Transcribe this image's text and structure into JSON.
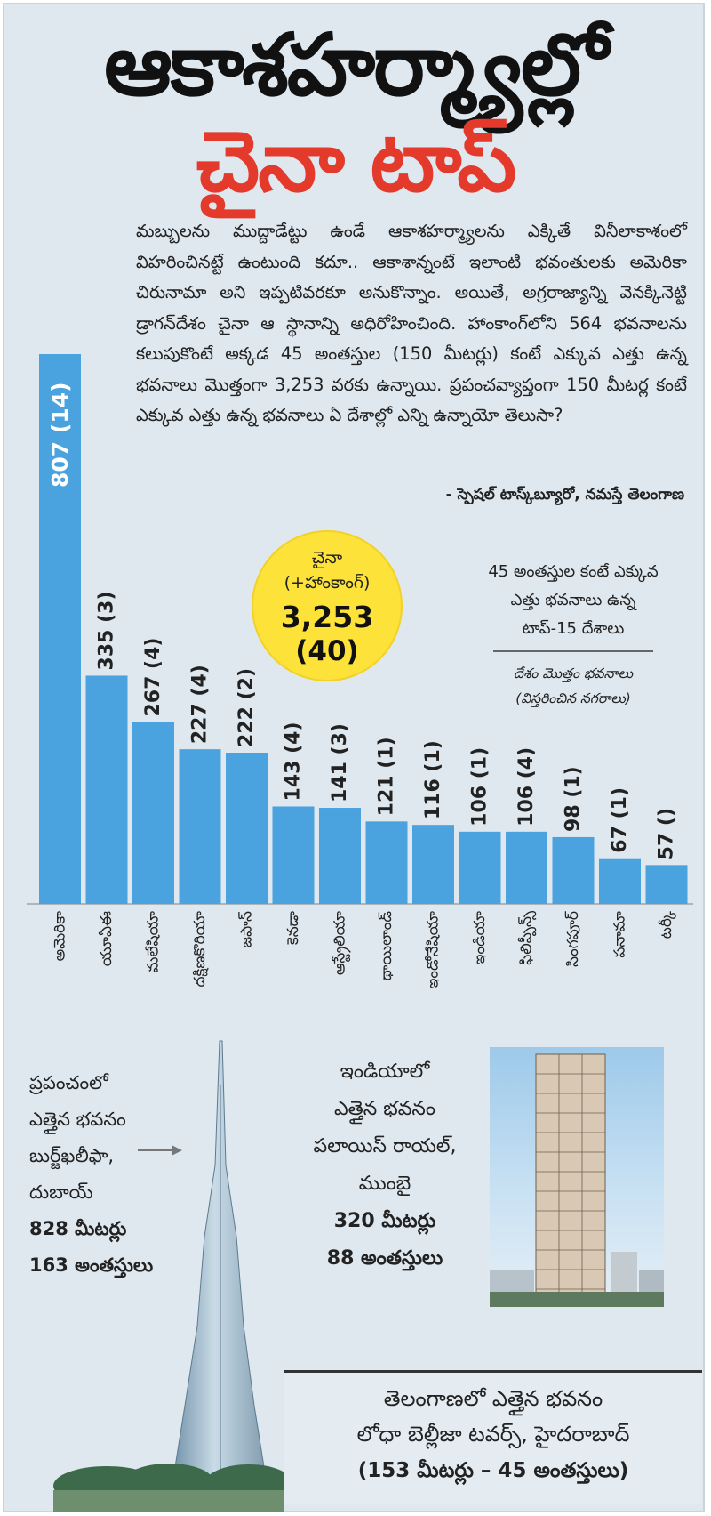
{
  "headline": {
    "line1": "ఆకాశహర్మ్యాల్లో",
    "line2": "చైనా టాప్"
  },
  "intro_text": "మబ్బులను ముద్దాడేట్టు ఉండే ఆకాశహర్మ్యాలను ఎక్కితే వినీలాకాశంలో విహరించినట్టే ఉంటుంది కదూ.. ఆకాశాన్నంటే ఇలాంటి భవంతులకు అమెరికా చిరునామా అని ఇప్పటివరకూ అనుకొన్నాం. అయితే, అగ్రరాజ్యాన్ని వెనక్కినెట్టి డ్రాగన్‌దేశం చైనా ఆ స్థానాన్ని అధిరోహించింది. హాంకాంగ్‌లోని 564 భవనాలను కలుపుకొంటే అక్కడ 45 అంతస్తుల (150 మీటర్లు) కంటే ఎక్కువ ఎత్తు ఉన్న భవనాలు మొత్తంగా 3,253 వరకు ఉన్నాయి. ప్రపంచవ్యాప్తంగా 150 మీటర్ల కంటే ఎక్కువ ఎత్తు ఉన్న భవనాలు ఏ దేశాల్లో ఎన్ని ఉన్నాయో తెలుసా?",
  "credit": "- స్పెషల్ టాస్క్‌బ్యూరో, నమస్తే తెలంగాణ",
  "china_callout": {
    "country": "చైనా",
    "note": "(+హాంకాంగ్)",
    "total": "3,253",
    "cities": "(40)"
  },
  "legend": {
    "line1": "45 అంతస్తుల కంటే ఎక్కువ",
    "line2": "ఎత్తు భవనాలు ఉన్న",
    "line3": "టాప్-15 దేశాలు",
    "line4": "దేశం మొత్తం భవనాలు",
    "line5": "(విస్తరించిన నగరాలు)"
  },
  "chart_data": {
    "type": "bar",
    "title": "45 అంతస్తుల కంటే ఎక్కువ ఎత్తు భవనాలు ఉన్న టాప్-15 దేశాలు",
    "categories": [
      "అమెరికా",
      "యూఏఈ",
      "మలేషియా",
      "దక్షిణకొరియా",
      "జపాన్",
      "కెనడా",
      "ఆస్ట్రేలియా",
      "థాయిలాండ్",
      "ఇండోనేషియా",
      "ఇండియా",
      "ఫిలిప్పీన్స్",
      "సింగపూర్",
      "పనామా",
      "టర్కీ"
    ],
    "values": [
      807,
      335,
      267,
      227,
      222,
      143,
      141,
      121,
      116,
      106,
      106,
      98,
      67,
      57
    ],
    "labels": [
      "807 (14)",
      "335 (3)",
      "267 (4)",
      "227 (4)",
      "222 (2)",
      "143 (4)",
      "141 (3)",
      "121 (1)",
      "116 (1)",
      "106 (1)",
      "106 (4)",
      "98 (1)",
      "67 (1)",
      "57 ()"
    ],
    "bar_color": "#4aa3df",
    "ylim": [
      0,
      807
    ]
  },
  "burj": {
    "l1": "ప్రపంచంలో",
    "l2": "ఎత్తైన భవనం",
    "l3": "బుర్జ్‌ఖలీఫా,",
    "l4": "దుబాయ్",
    "l5": "828 మీటర్లు",
    "l6": "163 అంతస్తులు"
  },
  "india": {
    "l1": "ఇండియాలో",
    "l2": "ఎత్తైన భవనం",
    "l3": "పలాయిస్ రాయల్,",
    "l4": "ముంబై",
    "l5": "320 మీటర్లు",
    "l6": "88 అంతస్తులు"
  },
  "telangana": {
    "l1": "తెలంగాణలో ఎత్తైన భవనం",
    "l2": "లోధా బెల్లీజా టవర్స్, హైదరాబాద్",
    "l3": "(153 మీటర్లు – 45 అంతస్తులు)"
  },
  "colors": {
    "background": "#dfe8ef",
    "bar": "#4aa3df",
    "title_red": "#e43a2c",
    "callout_yellow": "#fde23a"
  }
}
